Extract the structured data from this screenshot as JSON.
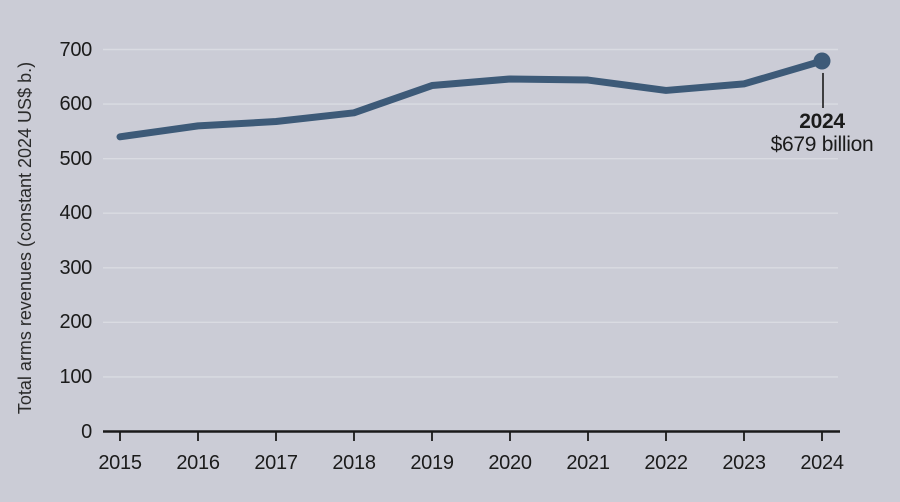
{
  "chart_data": {
    "type": "line",
    "title": "",
    "xlabel": "",
    "ylabel": "Total arms revenues (constant 2024 US$ b.)",
    "categories": [
      "2015",
      "2016",
      "2017",
      "2018",
      "2019",
      "2020",
      "2021",
      "2022",
      "2023",
      "2024"
    ],
    "series": [
      {
        "name": "Total arms revenues (constant 2024 US$ b.)",
        "values": [
          540,
          560,
          568,
          584,
          634,
          646,
          644,
          625,
          637,
          679
        ]
      }
    ],
    "ylim": [
      0,
      700
    ],
    "yticks": [
      0,
      100,
      200,
      300,
      400,
      500,
      600,
      700
    ],
    "grid": true,
    "legend": "none",
    "annotation": {
      "year": "2024",
      "value": "$679 billion"
    },
    "colors": {
      "background": "#cbccd6",
      "line": "#3d5a78",
      "grid": "#dadbe2",
      "axis": "#1a1a1a",
      "text": "#1b1b1b",
      "axis_title_text": "#2b2b2b"
    }
  }
}
